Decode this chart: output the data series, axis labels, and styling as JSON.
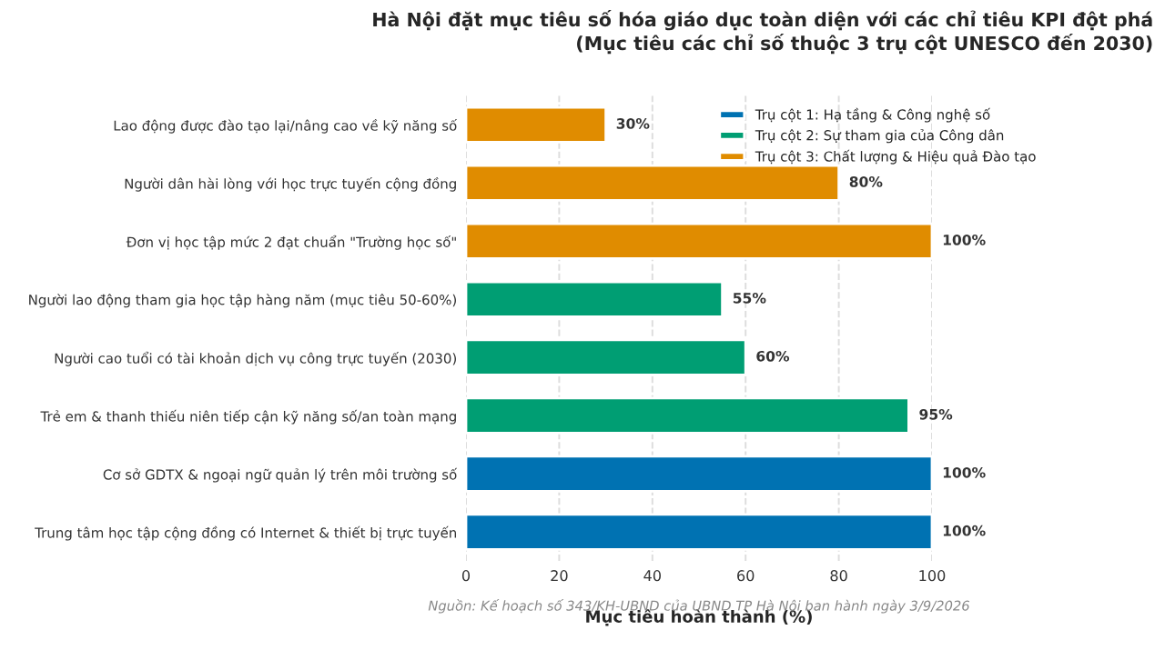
{
  "chart_data": {
    "type": "bar",
    "orientation": "horizontal",
    "title": "Hà Nội đặt mục tiêu số hóa giáo dục toàn diện với các chỉ tiêu KPI đột phá\n(Mục tiêu các chỉ số thuộc 3 trụ cột UNESCO đến 2030)",
    "xlabel": "Mục tiêu hoàn thành (%)",
    "annotations": [
      "Nguồn: Kế hoạch số 343/KH-UBND của UBND TP Hà Nội ban hành ngày 3/9/2026"
    ],
    "categories": [
      "Lao động được đào tạo lại/nâng cao về kỹ năng số",
      "Người dân hài lòng với học trực tuyến cộng đồng",
      "Đơn vị học tập mức 2 đạt chuẩn \"Trường học số\"",
      "Người lao động tham gia học tập hàng năm (mục tiêu 50-60%)",
      "Người cao tuổi có tài khoản dịch vụ công trực tuyến (2030)",
      "Trẻ em & thanh thiếu niên tiếp cận kỹ năng số/an toàn mạng",
      "Cơ sở GDTX & ngoại ngữ quản lý trên môi trường số",
      "Trung tâm học tập cộng đồng có Internet & thiết bị trực tuyến"
    ],
    "series": [
      {
        "name": "Trụ cột 1: Hạ tầng & Công nghệ số",
        "color": "#0072b2",
        "values": [
          null,
          null,
          null,
          null,
          null,
          null,
          100,
          100
        ],
        "value_labels": [
          null,
          null,
          null,
          null,
          null,
          null,
          "100%",
          "100%"
        ]
      },
      {
        "name": "Trụ cột 2: Sự tham gia của Công dân",
        "color": "#009e73",
        "values": [
          null,
          null,
          null,
          55,
          60,
          95,
          null,
          null
        ],
        "value_labels": [
          null,
          null,
          null,
          "55%",
          "60%",
          "95%",
          null,
          null
        ]
      },
      {
        "name": "Trụ cột 3: Chất lượng & Hiệu quả Đào tạo",
        "color": "#e08c00",
        "values": [
          30,
          80,
          100,
          null,
          null,
          null,
          null,
          null
        ],
        "value_labels": [
          "30%",
          "80%",
          "100%",
          null,
          null,
          null,
          null,
          null
        ]
      }
    ],
    "xlim": [
      0,
      100
    ],
    "xticks": [
      0,
      20,
      40,
      60,
      80,
      100
    ],
    "grid": "x",
    "legend": "top right"
  }
}
